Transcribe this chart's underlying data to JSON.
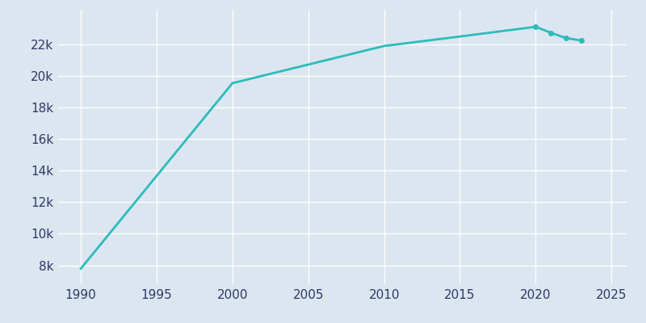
{
  "years": [
    1990,
    2000,
    2010,
    2015,
    2020,
    2021,
    2022,
    2023
  ],
  "population": [
    7795,
    19545,
    21900,
    22500,
    23116,
    22740,
    22400,
    22250
  ],
  "line_color": "#2abcbc",
  "marker_years": [
    2020,
    2021,
    2022,
    2023
  ],
  "bg_color": "#dce6f0",
  "axis_bg_color": "#dce6f0",
  "text_color": "#2b3a6b",
  "xlim": [
    1988.5,
    2026
  ],
  "ylim": [
    6800,
    24200
  ],
  "yticks": [
    8000,
    10000,
    12000,
    14000,
    16000,
    18000,
    20000,
    22000
  ],
  "ytick_labels": [
    "8k",
    "10k",
    "12k",
    "14k",
    "16k",
    "18k",
    "20k",
    "22k"
  ],
  "xticks": [
    1990,
    1995,
    2000,
    2005,
    2010,
    2015,
    2020,
    2025
  ]
}
